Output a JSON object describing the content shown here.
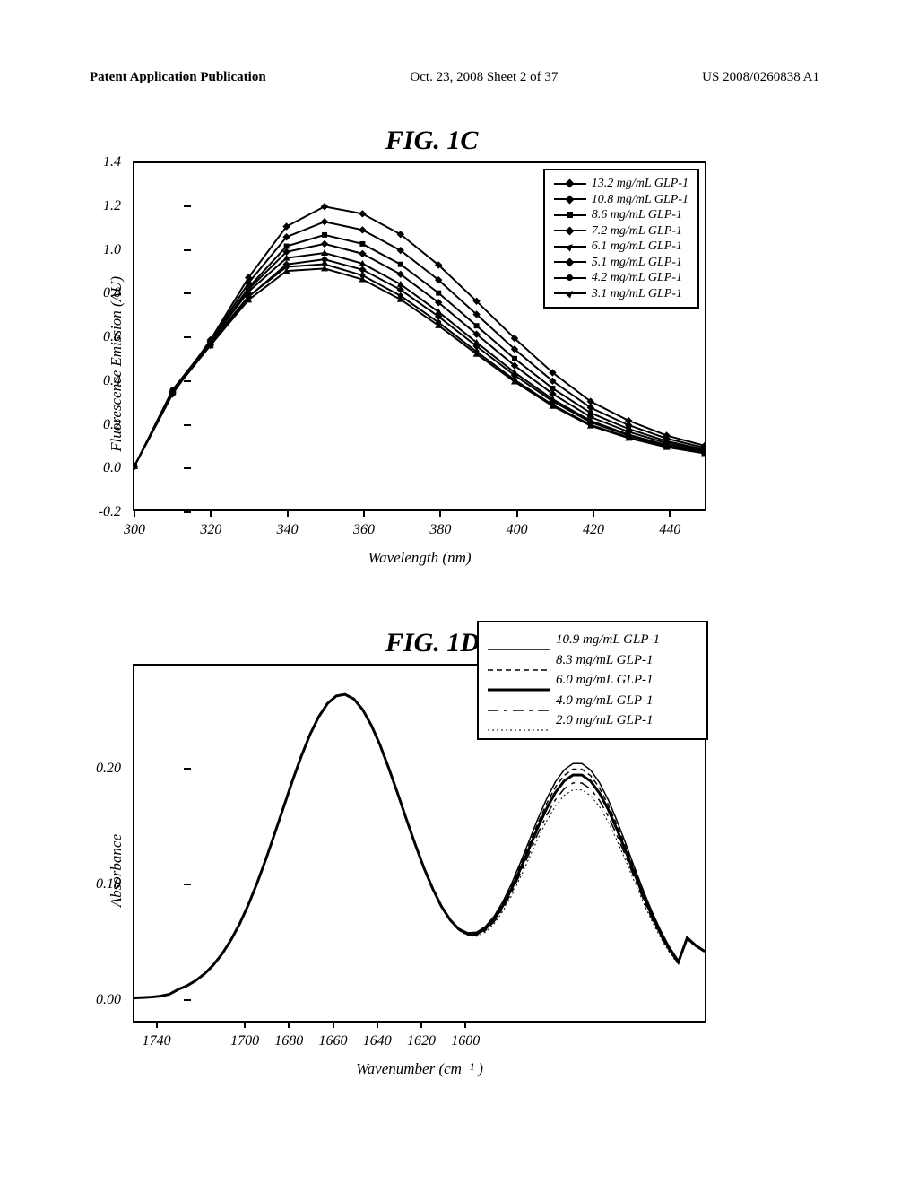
{
  "header": {
    "left": "Patent Application Publication",
    "mid": "Oct. 23, 2008  Sheet 2 of 37",
    "right": "US 2008/0260838 A1"
  },
  "figC": {
    "title": "FIG. 1C",
    "ylabel": "Fluorescence Emission (AU)",
    "xlabel": "Wavelength (nm)",
    "xlim": [
      300,
      450
    ],
    "ylim": [
      -0.2,
      1.4
    ],
    "yticks": [
      -0.2,
      0.0,
      0.2,
      0.4,
      0.6,
      0.8,
      1.0,
      1.2,
      1.4
    ],
    "xticks": [
      300,
      320,
      340,
      360,
      380,
      400,
      420,
      440
    ],
    "bg": "#ffffff",
    "line_color": "#000000",
    "line_width": 2,
    "series": [
      {
        "label": "13.2 mg/mL GLP-1",
        "marker": "diamond",
        "peak_y": 1.2,
        "peak_x": 350
      },
      {
        "label": "10.8 mg/mL GLP-1",
        "marker": "diamond",
        "peak_y": 1.13,
        "peak_x": 349
      },
      {
        "label": "8.6 mg/mL GLP-1",
        "marker": "square",
        "peak_y": 1.07,
        "peak_x": 348
      },
      {
        "label": "7.2 mg/mL GLP-1",
        "marker": "diamond",
        "peak_y": 1.03,
        "peak_x": 347
      },
      {
        "label": "6.1 mg/mL GLP-1",
        "marker": "triangle",
        "peak_y": 0.99,
        "peak_x": 346
      },
      {
        "label": "5.1 mg/mL GLP-1",
        "marker": "diamond",
        "peak_y": 0.96,
        "peak_x": 346
      },
      {
        "label": "4.2 mg/mL GLP-1",
        "marker": "circle",
        "peak_y": 0.94,
        "peak_x": 345
      },
      {
        "label": "3.1 mg/mL GLP-1",
        "marker": "triangle",
        "peak_y": 0.92,
        "peak_x": 345
      }
    ],
    "curve_x": [
      300,
      310,
      320,
      330,
      340,
      350,
      360,
      370,
      380,
      390,
      400,
      410,
      420,
      430,
      440,
      450
    ]
  },
  "figD": {
    "title": "FIG. 1D",
    "ylabel": "Absorbance",
    "xlabel": "Wavenumber (cm⁻¹ )",
    "xlim": [
      1750,
      1490
    ],
    "ylim": [
      -0.02,
      0.29
    ],
    "yticks": [
      0.0,
      0.1,
      0.2
    ],
    "xticks": [
      1740,
      1700,
      1680,
      1660,
      1640,
      1620,
      1600
    ],
    "bg": "#ffffff",
    "line_color": "#000000",
    "series": [
      {
        "label": "10.9 mg/mL GLP-1",
        "dash": "none",
        "width": 1.5,
        "peak2": 0.205
      },
      {
        "label": "8.3 mg/mL GLP-1",
        "dash": "6,4",
        "width": 1.5,
        "peak2": 0.2
      },
      {
        "label": "6.0 mg/mL GLP-1",
        "dash": "none",
        "width": 3.0,
        "peak2": 0.195
      },
      {
        "label": "4.0 mg/mL GLP-1",
        "dash": "12,6,4,6",
        "width": 1.5,
        "peak2": 0.188
      },
      {
        "label": "2.0 mg/mL GLP-1",
        "dash": "2,3",
        "width": 1.0,
        "peak2": 0.182
      }
    ],
    "peak1_x": 1655,
    "peak1_y": 0.265,
    "trough_x": 1585,
    "trough_y": 0.035,
    "peak2_x": 1548
  }
}
